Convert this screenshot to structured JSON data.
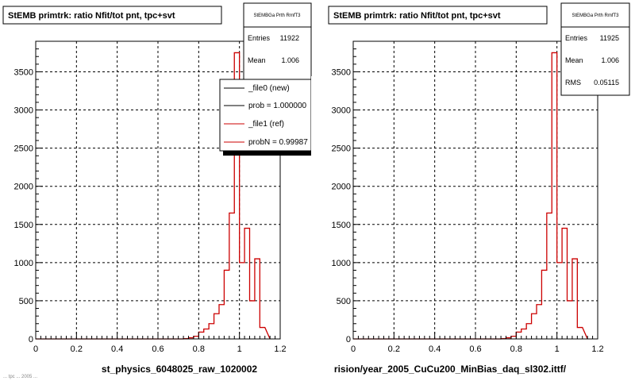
{
  "colors": {
    "background": "#ffffff",
    "frame": "#000000",
    "grid": "#000000",
    "new_hist": "#000000",
    "ref_hist": "#cc0000"
  },
  "footer_text": "... tpc ... 2005 ...",
  "chart_data": [
    {
      "type": "bar",
      "title": "StEMB primtrk: ratio Nfit/tot pnt, tpc+svt",
      "xlabel": "st_physics_6048025_raw_1020002",
      "ylabel": "",
      "xlim": [
        0,
        1.2
      ],
      "ylim": [
        0,
        3900
      ],
      "xticks": [
        "0",
        "0.2",
        "0.4",
        "0.6",
        "0.8",
        "1",
        "1.2"
      ],
      "yticks": [
        "0",
        "500",
        "1000",
        "1500",
        "2000",
        "2500",
        "3000",
        "3500"
      ],
      "grid": true,
      "bin_edges": [
        0,
        0.025,
        0.05,
        0.075,
        0.1,
        0.125,
        0.15,
        0.175,
        0.2,
        0.225,
        0.25,
        0.275,
        0.3,
        0.325,
        0.35,
        0.375,
        0.4,
        0.425,
        0.45,
        0.475,
        0.5,
        0.525,
        0.55,
        0.575,
        0.6,
        0.625,
        0.65,
        0.675,
        0.7,
        0.725,
        0.75,
        0.775,
        0.8,
        0.825,
        0.85,
        0.875,
        0.9,
        0.925,
        0.95,
        0.975,
        1.0,
        1.025,
        1.05,
        1.075,
        1.1,
        1.125
      ],
      "series": [
        {
          "name": "_file1 (ref)",
          "color": "#cc0000",
          "values": [
            0,
            0,
            0,
            0,
            0,
            0,
            0,
            0,
            0,
            0,
            0,
            0,
            0,
            0,
            0,
            0,
            0,
            0,
            0,
            0,
            0,
            0,
            0,
            0,
            0,
            0,
            0,
            0,
            0,
            3,
            15,
            35,
            90,
            130,
            200,
            330,
            450,
            900,
            1650,
            3750,
            1000,
            1450,
            500,
            1050,
            150
          ]
        }
      ],
      "stats": {
        "name": "StEMBGa Prth RmfT3",
        "entries_label": "Entries",
        "entries": "11922",
        "mean_label": "Mean",
        "mean": "1.006"
      },
      "legend": {
        "position": "top-right",
        "entries": [
          {
            "label": "_file0 (new)",
            "color": "#000000"
          },
          {
            "label": "prob = 1.000000",
            "color": "#000000"
          },
          {
            "label": "_file1 (ref)",
            "color": "#cc0000"
          },
          {
            "label": "probN = 0.99987",
            "color": "#cc0000"
          }
        ]
      }
    },
    {
      "type": "bar",
      "title": "StEMB primtrk: ratio Nfit/tot pnt, tpc+svt",
      "xlabel": "rision/year_2005_CuCu200_MinBias_daq_sl302.ittf/",
      "ylabel": "",
      "xlim": [
        0,
        1.2
      ],
      "ylim": [
        0,
        3900
      ],
      "xticks": [
        "0",
        "0.2",
        "0.4",
        "0.6",
        "0.8",
        "1",
        "1.2"
      ],
      "yticks": [
        "0",
        "500",
        "1000",
        "1500",
        "2000",
        "2500",
        "3000",
        "3500"
      ],
      "grid": true,
      "bin_edges": [
        0,
        0.025,
        0.05,
        0.075,
        0.1,
        0.125,
        0.15,
        0.175,
        0.2,
        0.225,
        0.25,
        0.275,
        0.3,
        0.325,
        0.35,
        0.375,
        0.4,
        0.425,
        0.45,
        0.475,
        0.5,
        0.525,
        0.55,
        0.575,
        0.6,
        0.625,
        0.65,
        0.675,
        0.7,
        0.725,
        0.75,
        0.775,
        0.8,
        0.825,
        0.85,
        0.875,
        0.9,
        0.925,
        0.95,
        0.975,
        1.0,
        1.025,
        1.05,
        1.075,
        1.1,
        1.125
      ],
      "series": [
        {
          "name": "",
          "color": "#cc0000",
          "values": [
            0,
            0,
            0,
            0,
            0,
            0,
            0,
            0,
            0,
            0,
            0,
            0,
            0,
            0,
            0,
            0,
            0,
            0,
            0,
            0,
            0,
            0,
            0,
            0,
            0,
            0,
            0,
            0,
            0,
            3,
            15,
            35,
            90,
            130,
            200,
            330,
            450,
            900,
            1650,
            3750,
            1000,
            1450,
            500,
            1050,
            150
          ]
        }
      ],
      "stats": {
        "name": "StEMBGa Prth RmfT3",
        "entries_label": "Entries",
        "entries": "11925",
        "mean_label": "Mean",
        "mean": "1.006",
        "rms_label": "RMS",
        "rms": "0.05115"
      }
    }
  ]
}
